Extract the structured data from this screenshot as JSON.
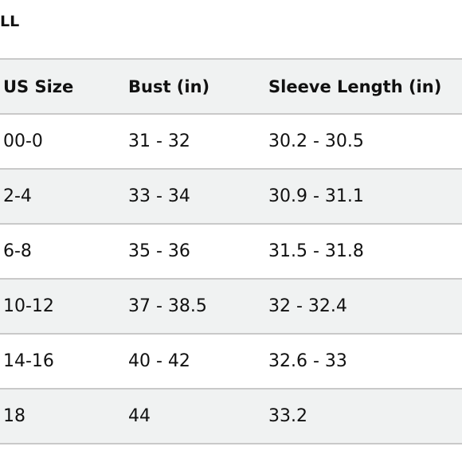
{
  "header": {
    "title": "LL"
  },
  "table": {
    "columns": [
      "US Size",
      "Bust (in)",
      "Sleeve Length (in)"
    ],
    "rows": [
      [
        "00-0",
        "31 - 32",
        "30.2 - 30.5"
      ],
      [
        "2-4",
        "33 - 34",
        "30.9 - 31.1"
      ],
      [
        "6-8",
        "35 - 36",
        "31.5 - 31.8"
      ],
      [
        "10-12",
        "37 - 38.5",
        "32 - 32.4"
      ],
      [
        "14-16",
        "40 - 42",
        "32.6 - 33"
      ],
      [
        "18",
        "44",
        "33.2"
      ]
    ]
  }
}
